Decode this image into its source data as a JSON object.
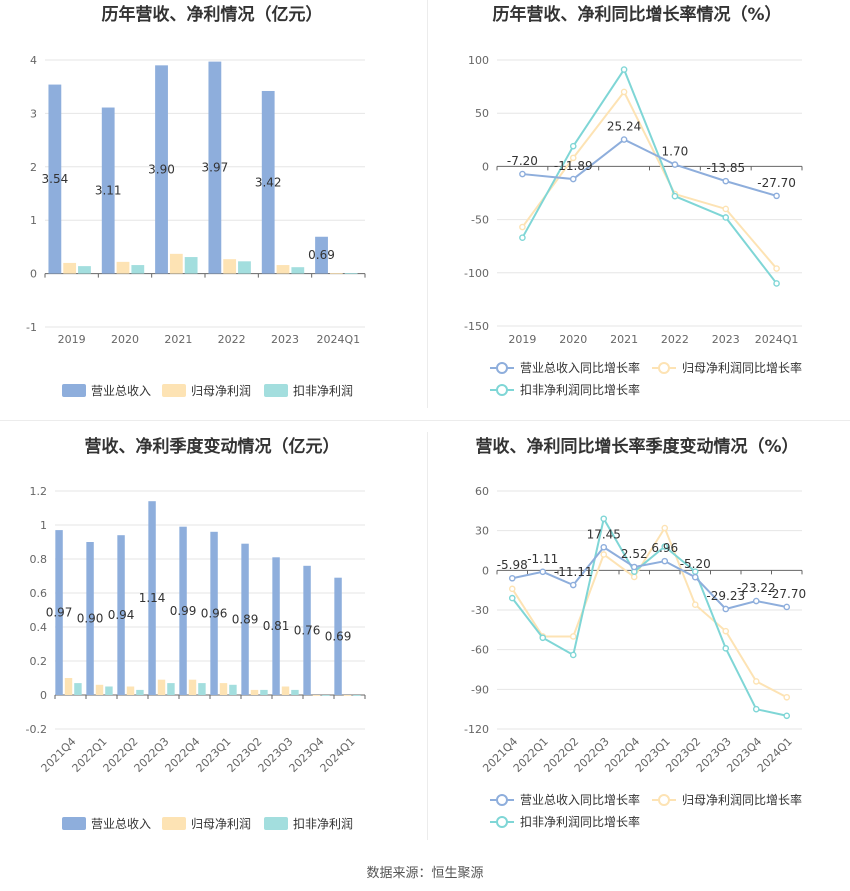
{
  "colors": {
    "revenue": "#8eaedc",
    "parent_profit": "#fde3b4",
    "deducted_profit": "#a3dede",
    "line_revenue": "#8eaedc",
    "line_parent": "#fde3b4",
    "line_deducted": "#7fd6d6"
  },
  "source_text": "数据来源：恒生聚源",
  "chart_data": [
    {
      "id": "annual-bar",
      "type": "bar",
      "title": "历年营收、净利情况（亿元）",
      "categories": [
        "2019",
        "2020",
        "2021",
        "2022",
        "2023",
        "2024Q1"
      ],
      "series": [
        {
          "name": "营业总收入",
          "values": [
            3.54,
            3.11,
            3.9,
            3.97,
            3.42,
            0.69
          ],
          "labels": [
            "3.54",
            "3.11",
            "3.90",
            "3.97",
            "3.42",
            "0.69"
          ]
        },
        {
          "name": "归母净利润",
          "values": [
            0.2,
            0.22,
            0.37,
            0.27,
            0.16,
            0.01
          ]
        },
        {
          "name": "扣非净利润",
          "values": [
            0.14,
            0.16,
            0.31,
            0.23,
            0.12,
            0.01
          ]
        }
      ],
      "ylim": [
        -1,
        4
      ],
      "yticks": [
        -1,
        0,
        1,
        2,
        3,
        4
      ],
      "ytick_labels": [
        "-1",
        "0",
        "1",
        "2",
        "3",
        "4"
      ],
      "legend_position": "bottom",
      "grid": true
    },
    {
      "id": "annual-line",
      "type": "line",
      "title": "历年营收、净利同比增长率情况（%）",
      "categories": [
        "2019",
        "2020",
        "2021",
        "2022",
        "2023",
        "2024Q1"
      ],
      "series": [
        {
          "name": "营业总收入同比增长率",
          "values": [
            -7.2,
            -11.89,
            25.24,
            1.7,
            -13.85,
            -27.7
          ],
          "labels": [
            "-7.20",
            "-11.89",
            "25.24",
            "1.70",
            "-13.85",
            "-27.70"
          ]
        },
        {
          "name": "归母净利润同比增长率",
          "values": [
            -57,
            8,
            70,
            -26,
            -40,
            -96
          ]
        },
        {
          "name": "扣非净利润同比增长率",
          "values": [
            -67,
            19,
            91,
            -28,
            -48,
            -110
          ]
        }
      ],
      "ylim": [
        -150,
        100
      ],
      "yticks": [
        -150,
        -100,
        -50,
        0,
        50,
        100
      ],
      "ytick_labels": [
        "-150",
        "-100",
        "-50",
        "0",
        "50",
        "100"
      ],
      "legend_position": "bottom",
      "grid": true
    },
    {
      "id": "quarterly-bar",
      "type": "bar",
      "title": "营收、净利季度变动情况（亿元）",
      "categories": [
        "2021Q4",
        "2022Q1",
        "2022Q2",
        "2022Q3",
        "2022Q4",
        "2023Q1",
        "2023Q2",
        "2023Q3",
        "2023Q4",
        "2024Q1"
      ],
      "series": [
        {
          "name": "营业总收入",
          "values": [
            0.97,
            0.9,
            0.94,
            1.14,
            0.99,
            0.96,
            0.89,
            0.81,
            0.76,
            0.69
          ],
          "labels": [
            "0.97",
            "0.90",
            "0.94",
            "1.14",
            "0.99",
            "0.96",
            "0.89",
            "0.81",
            "0.76",
            "0.69"
          ]
        },
        {
          "name": "归母净利润",
          "values": [
            0.1,
            0.06,
            0.05,
            0.09,
            0.09,
            0.07,
            0.03,
            0.05,
            0.0,
            0.0
          ]
        },
        {
          "name": "扣非净利润",
          "values": [
            0.07,
            0.05,
            0.03,
            0.07,
            0.07,
            0.06,
            0.03,
            0.03,
            0.0,
            -0.005
          ]
        }
      ],
      "ylim": [
        -0.2,
        1.2
      ],
      "yticks": [
        -0.2,
        0,
        0.2,
        0.4,
        0.6,
        0.8,
        1,
        1.2
      ],
      "ytick_labels": [
        "-0.2",
        "0",
        "0.2",
        "0.4",
        "0.6",
        "0.8",
        "1",
        "1.2"
      ],
      "legend_position": "bottom",
      "grid": true
    },
    {
      "id": "quarterly-line",
      "type": "line",
      "title": "营收、净利同比增长率季度变动情况（%）",
      "categories": [
        "2021Q4",
        "2022Q1",
        "2022Q2",
        "2022Q3",
        "2022Q4",
        "2023Q1",
        "2023Q2",
        "2023Q3",
        "2023Q4",
        "2024Q1"
      ],
      "series": [
        {
          "name": "营业总收入同比增长率",
          "values": [
            -5.98,
            -1.11,
            -11.11,
            17.45,
            2.52,
            6.96,
            -5.2,
            -29.23,
            -23.22,
            -27.7
          ],
          "labels": [
            "-5.98",
            "-1.11",
            "-11.11",
            "17.45",
            "2.52",
            "6.96",
            "-5.20",
            "-29.23",
            "-23.22",
            "-27.70"
          ]
        },
        {
          "name": "归母净利润同比增长率",
          "values": [
            -14,
            -50,
            -50,
            12,
            -5,
            32,
            -26,
            -46,
            -84,
            -96
          ]
        },
        {
          "name": "扣非净利润同比增长率",
          "values": [
            -21,
            -51,
            -64,
            39,
            -1,
            18,
            -1,
            -59,
            -105,
            -110
          ]
        }
      ],
      "ylim": [
        -120,
        60
      ],
      "yticks": [
        -120,
        -90,
        -60,
        -30,
        0,
        30,
        60
      ],
      "ytick_labels": [
        "-120",
        "-90",
        "-60",
        "-30",
        "0",
        "30",
        "60"
      ],
      "legend_position": "bottom",
      "grid": true
    }
  ]
}
